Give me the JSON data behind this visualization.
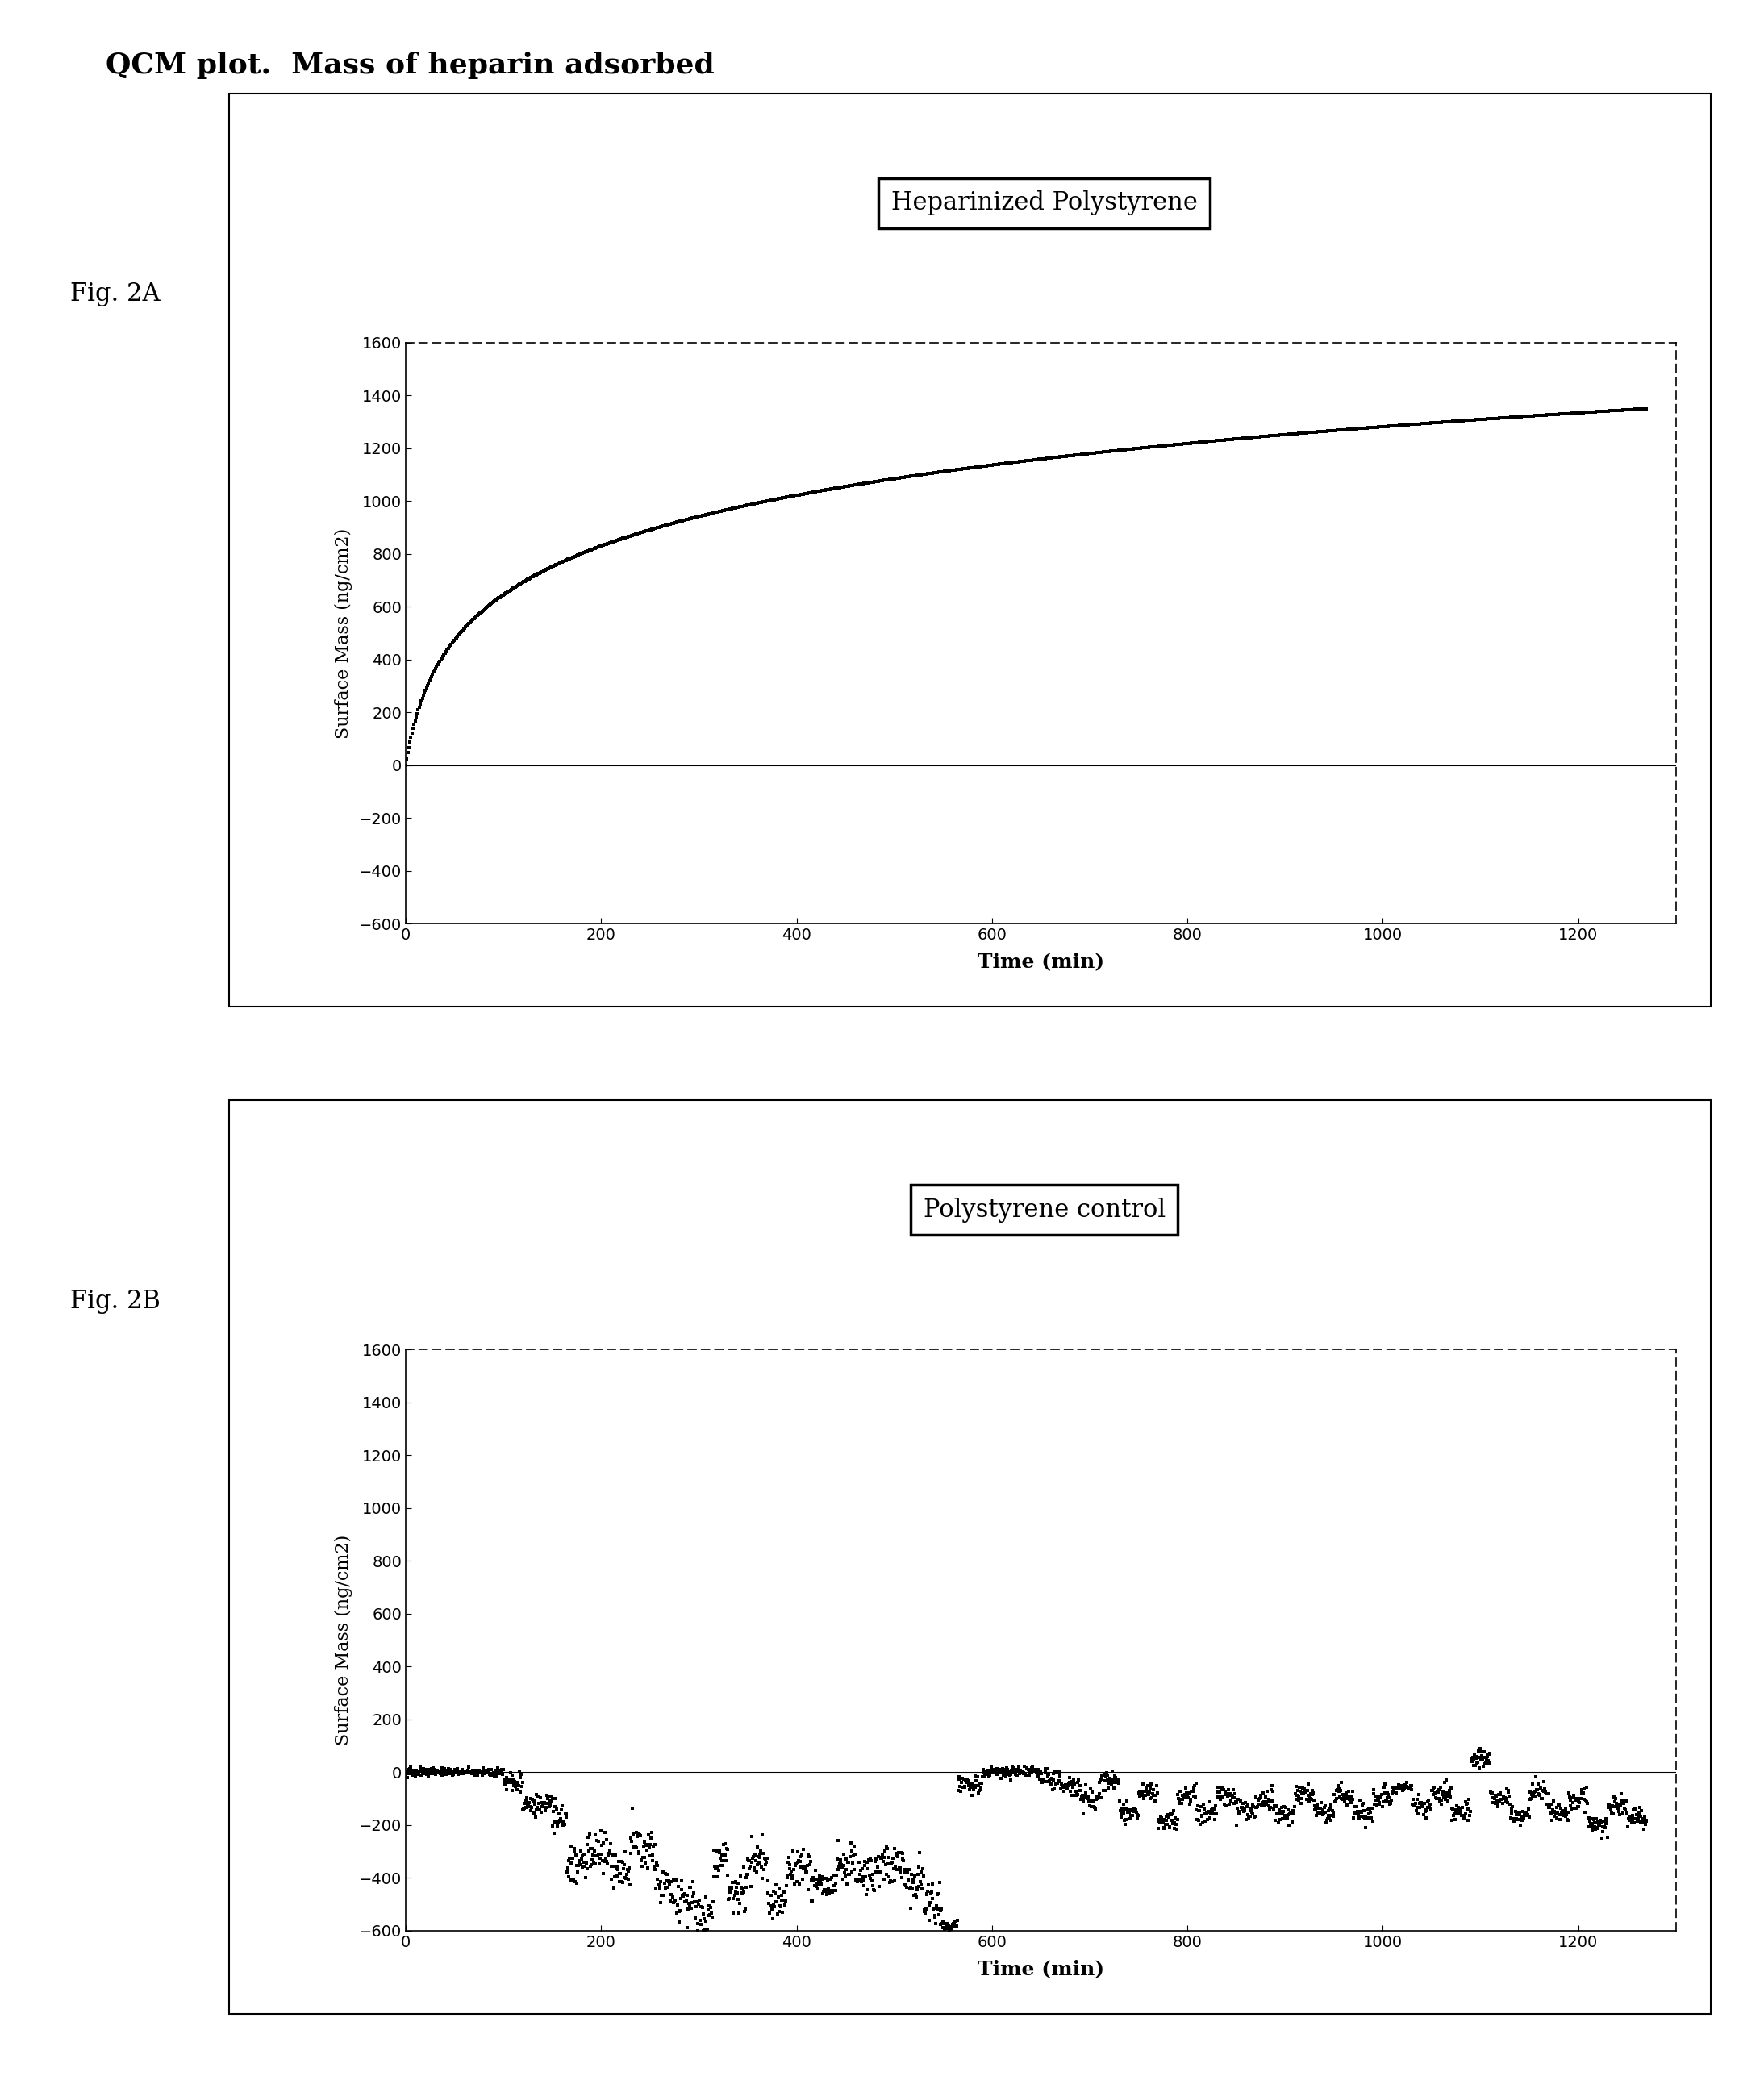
{
  "title": "QCM plot.  Mass of heparin adsorbed",
  "fig2A_label": "Fig. 2A",
  "fig2B_label": "Fig. 2B",
  "fig2A_title": "Heparinized Polystyrene",
  "fig2B_title": "Polystyrene control",
  "xlabel": "Time (min)",
  "ylabel": "Surface Mass (ng/cm2)",
  "xlim": [
    0,
    1300
  ],
  "ylim_A": [
    -600,
    1600
  ],
  "ylim_B": [
    -600,
    1600
  ],
  "yticks_A": [
    -600,
    -400,
    -200,
    0,
    200,
    400,
    600,
    800,
    1000,
    1200,
    1400,
    1600
  ],
  "yticks_B": [
    -600,
    -400,
    -200,
    0,
    200,
    400,
    600,
    800,
    1000,
    1200,
    1400,
    1600
  ],
  "xticks": [
    0,
    200,
    400,
    600,
    800,
    1000,
    1200
  ],
  "bg_color": "#ffffff",
  "data_color": "#000000",
  "marker": "s",
  "marker_size_A": 3,
  "marker_size_B": 3
}
